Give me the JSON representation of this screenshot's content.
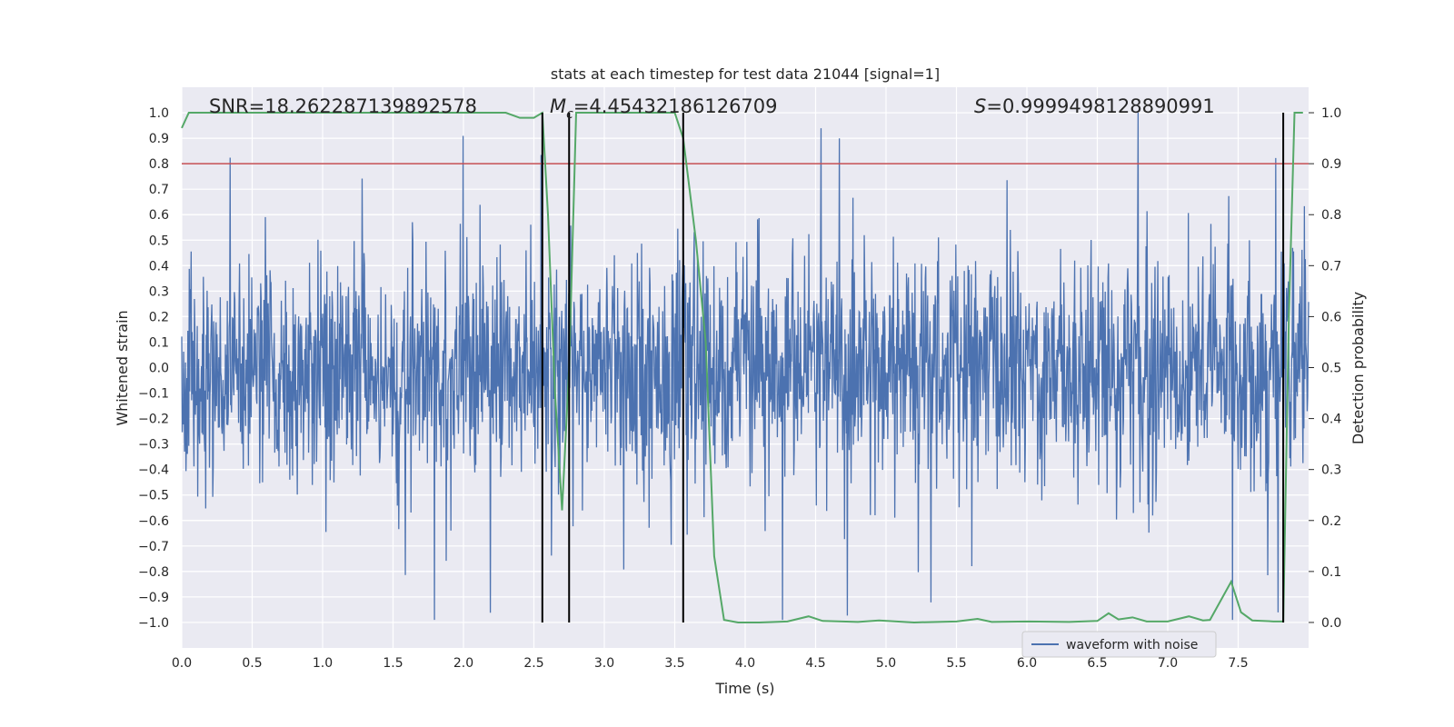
{
  "chart_data": {
    "type": "line",
    "title": "stats at each timestep for test data 21044 [signal=1]",
    "xlabel": "Time (s)",
    "ylabel": "Whitened strain",
    "y2label": "Detection probability",
    "xlim": [
      0.0,
      8.0
    ],
    "ylim": [
      -1.1,
      1.1
    ],
    "y2lim": [
      -0.05,
      1.05
    ],
    "xticks": [
      "0.0",
      "0.5",
      "1.0",
      "1.5",
      "2.0",
      "2.5",
      "3.0",
      "3.5",
      "4.0",
      "4.5",
      "5.0",
      "5.5",
      "6.0",
      "6.5",
      "7.0",
      "7.5"
    ],
    "yticks": [
      "1.0",
      "0.9",
      "0.8",
      "0.7",
      "0.6",
      "0.5",
      "0.4",
      "0.3",
      "0.2",
      "0.1",
      "0.0",
      "−0.1",
      "−0.2",
      "−0.3",
      "−0.4",
      "−0.5",
      "−0.6",
      "−0.7",
      "−0.8",
      "−0.9",
      "−1.0"
    ],
    "y2ticks": [
      "1.0",
      "0.9",
      "0.8",
      "0.7",
      "0.6",
      "0.5",
      "0.4",
      "0.3",
      "0.2",
      "0.1",
      "0.0"
    ],
    "grid": true,
    "legend": {
      "position": "lower-right",
      "entries": [
        "waveform with noise"
      ]
    },
    "annotations": {
      "snr": "SNR=18.262287139892578",
      "mc_symbol": "M",
      "mc_sub": "c",
      "mc_value": "=4.45432186126709",
      "s_symbol": "S",
      "s_value": "=0.9999498128890991"
    },
    "threshold_y2": 0.9,
    "vlines_x": [
      2.56,
      2.75,
      3.56,
      7.82
    ],
    "series": [
      {
        "name": "waveform with noise",
        "axis": "left",
        "color": "#4c72b0",
        "description_envelope": {
          "noise_band_abs": 0.4,
          "peak_abs_max": 1.0
        }
      },
      {
        "axis": "right",
        "color": "#55a868",
        "x": [
          0.0,
          0.05,
          0.1,
          0.5,
          1.0,
          1.5,
          2.0,
          2.3,
          2.4,
          2.5,
          2.56,
          2.6,
          2.65,
          2.7,
          2.75,
          2.8,
          2.85,
          3.0,
          3.3,
          3.5,
          3.56,
          3.65,
          3.72,
          3.78,
          3.85,
          3.95,
          4.1,
          4.3,
          4.45,
          4.55,
          4.8,
          4.95,
          5.2,
          5.5,
          5.65,
          5.75,
          6.0,
          6.3,
          6.5,
          6.58,
          6.65,
          6.75,
          6.85,
          7.0,
          7.15,
          7.25,
          7.3,
          7.38,
          7.45,
          7.52,
          7.6,
          7.75,
          7.82,
          7.86,
          7.9,
          7.96
        ],
        "values": [
          0.97,
          1.0,
          1.0,
          1.0,
          1.0,
          1.0,
          1.0,
          1.0,
          0.99,
          0.99,
          1.0,
          0.8,
          0.45,
          0.22,
          0.5,
          1.0,
          1.0,
          1.0,
          1.0,
          1.0,
          0.95,
          0.75,
          0.55,
          0.13,
          0.005,
          0.0,
          0.0,
          0.002,
          0.012,
          0.003,
          0.001,
          0.004,
          0.0,
          0.002,
          0.007,
          0.001,
          0.002,
          0.001,
          0.003,
          0.018,
          0.006,
          0.01,
          0.002,
          0.002,
          0.012,
          0.004,
          0.005,
          0.045,
          0.08,
          0.02,
          0.004,
          0.002,
          0.002,
          0.6,
          1.0,
          1.0
        ]
      }
    ]
  }
}
